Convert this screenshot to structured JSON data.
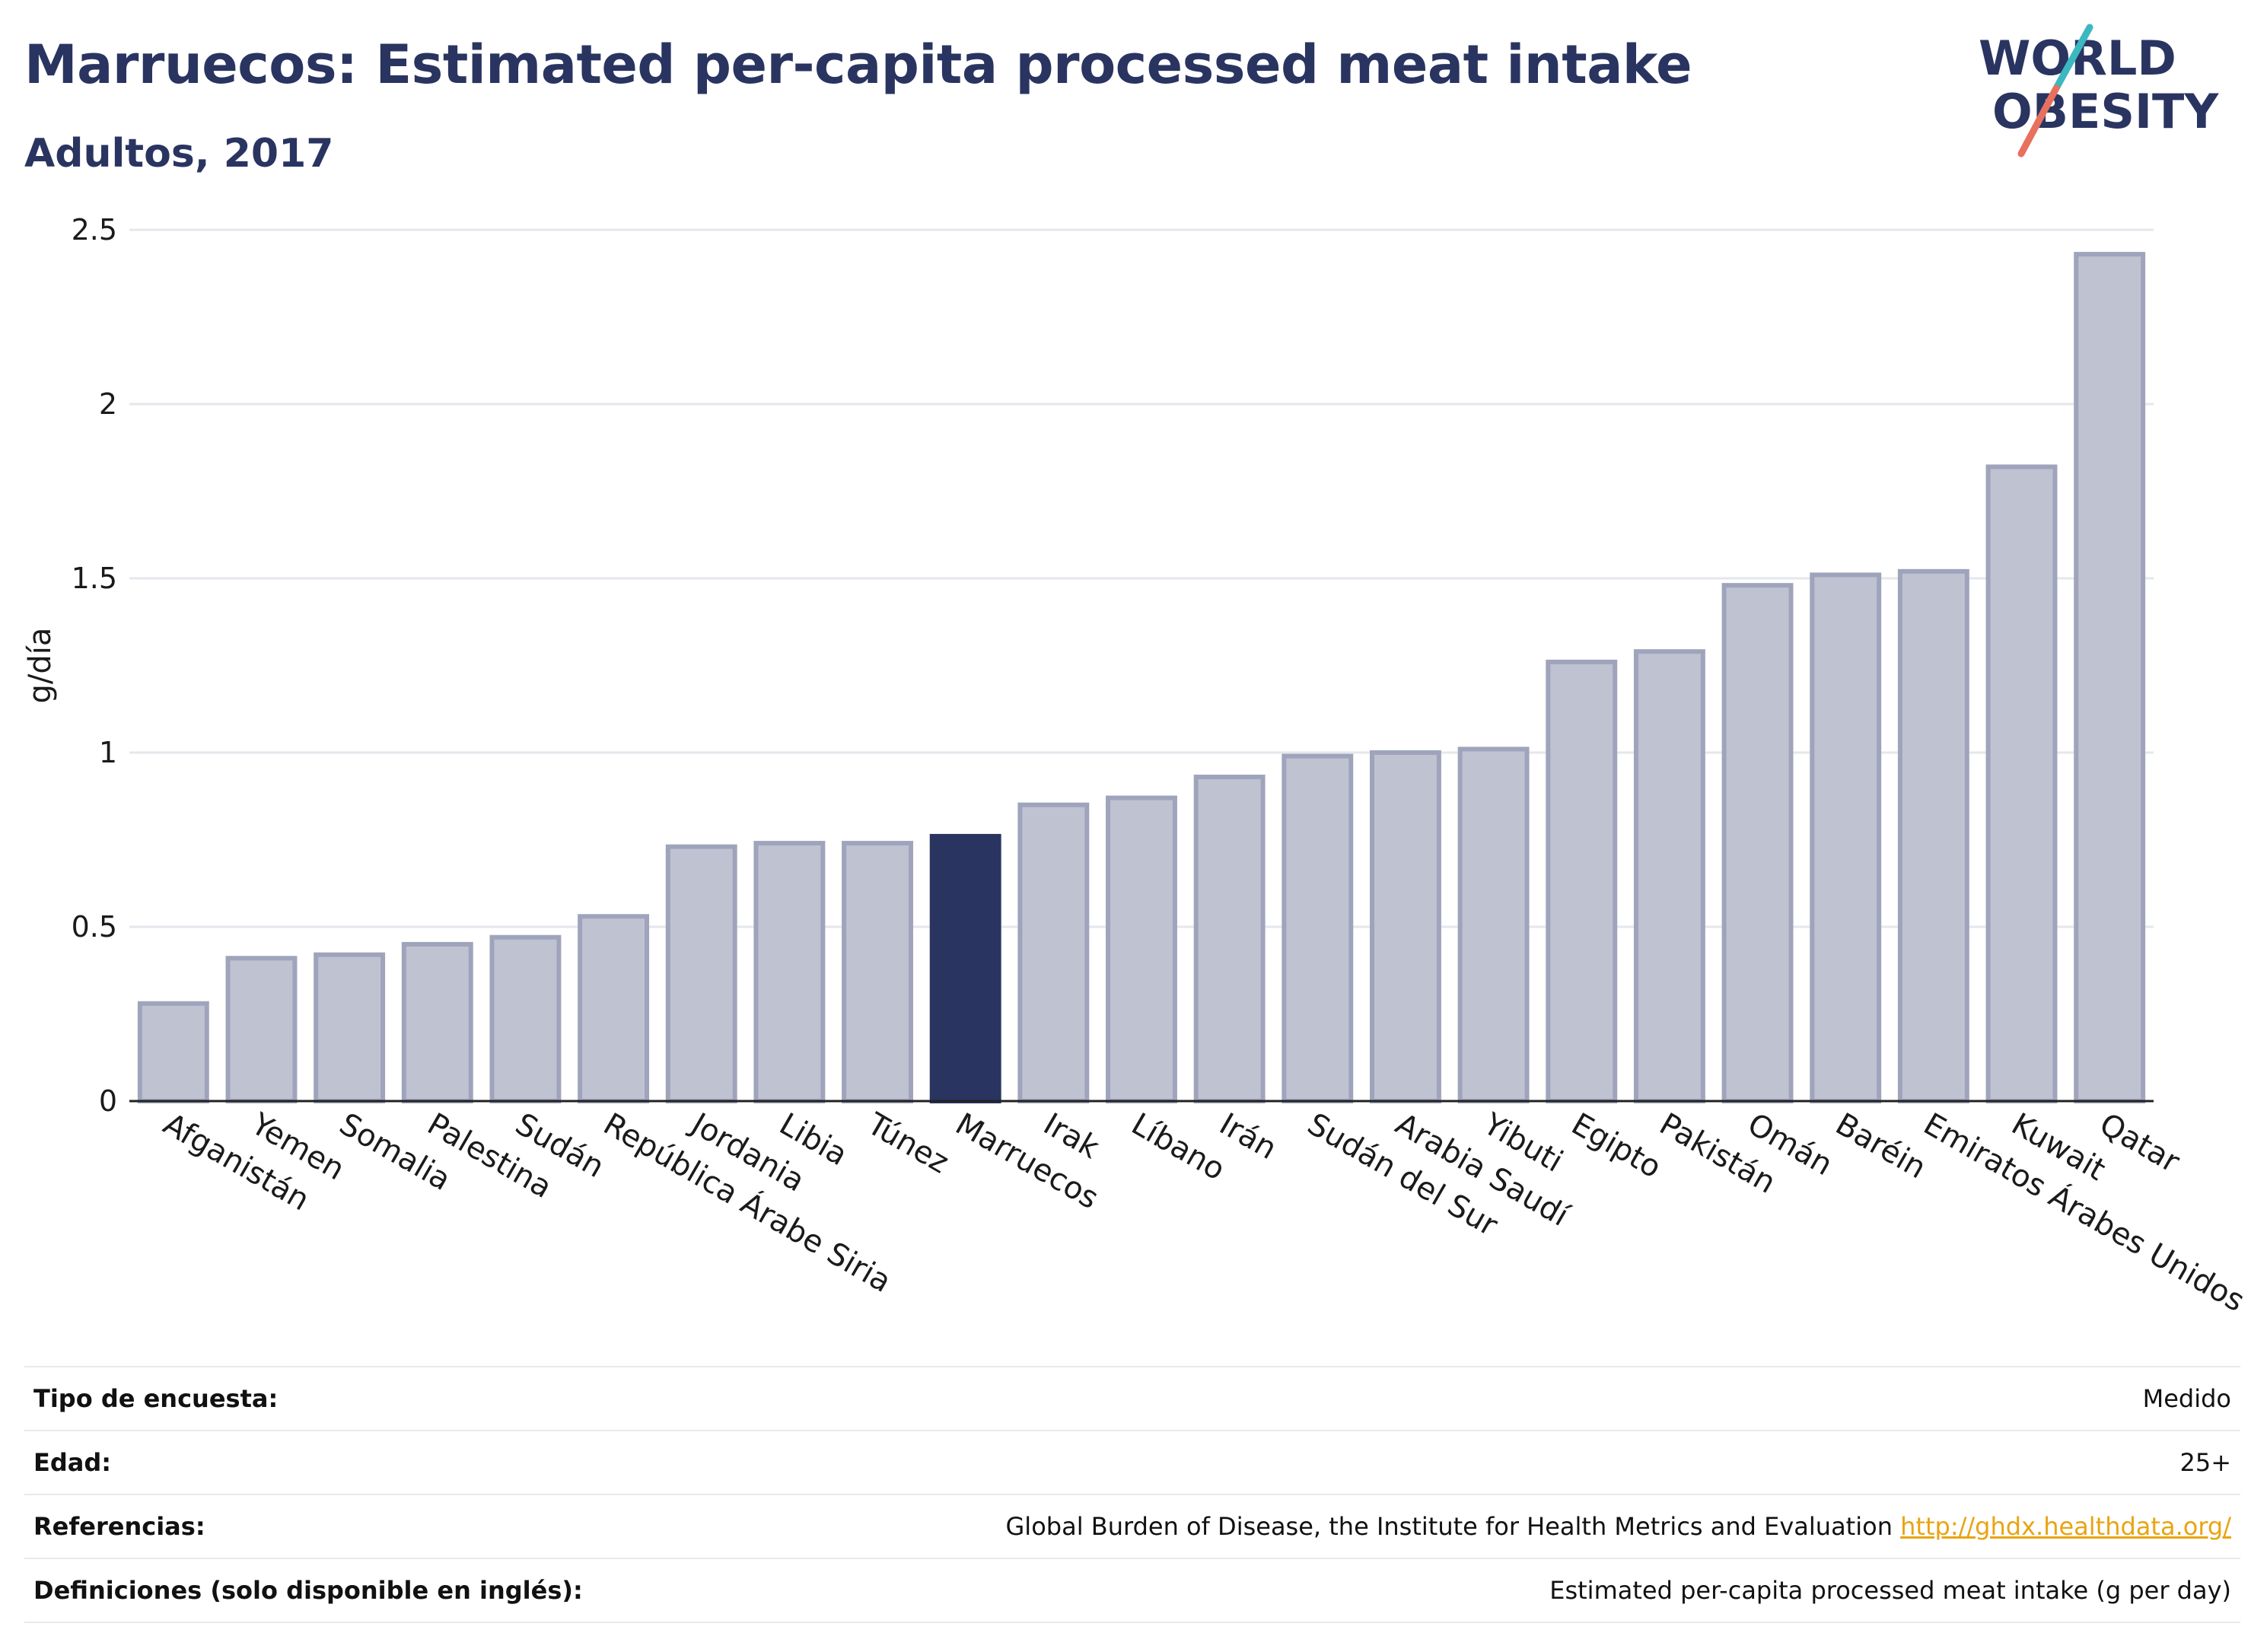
{
  "header": {
    "title": "Marruecos: Estimated per-capita processed meat intake",
    "subtitle": "Adultos, 2017",
    "logo_line1": "WORLD",
    "logo_line2": "OBESITY"
  },
  "colors": {
    "title": "#2a3460",
    "bar_default": "#bfc2d1",
    "bar_default_stroke": "#9fa4bc",
    "bar_highlight": "#2a3460",
    "grid": "#e6e7ec",
    "link": "#e8a412",
    "logo_teal": "#3bb8c0",
    "logo_coral": "#e8705e"
  },
  "chart_data": {
    "type": "bar",
    "title": "",
    "xlabel": "",
    "ylabel": "g/día",
    "ylim": [
      0,
      2.5
    ],
    "yticks": [
      0,
      0.5,
      1,
      1.5,
      2,
      2.5
    ],
    "ytick_labels": [
      "0",
      "0.5",
      "1",
      "1.5",
      "2",
      "2.5"
    ],
    "grid": true,
    "highlight": "Marruecos",
    "categories": [
      "Afganistán",
      "Yemen",
      "Somalia",
      "Palestina",
      "Sudán",
      "República Árabe Siria",
      "Jordania",
      "Libia",
      "Túnez",
      "Marruecos",
      "Irak",
      "Líbano",
      "Irán",
      "Sudán del Sur",
      "Arabia Saudí",
      "Yibuti",
      "Egipto",
      "Pakistán",
      "Omán",
      "Baréin",
      "Emiratos Árabes Unidos",
      "Kuwait",
      "Qatar"
    ],
    "values": [
      0.28,
      0.41,
      0.42,
      0.45,
      0.47,
      0.53,
      0.73,
      0.74,
      0.74,
      0.76,
      0.85,
      0.87,
      0.93,
      0.99,
      1.0,
      1.01,
      1.26,
      1.29,
      1.48,
      1.51,
      1.52,
      1.82,
      2.43
    ]
  },
  "info_table": [
    {
      "label": "Tipo de encuesta:",
      "value": "Medido"
    },
    {
      "label": "Edad:",
      "value": "25+"
    },
    {
      "label": "Referencias:",
      "value": "Global Burden of Disease, the Institute for Health Metrics and Evaluation",
      "link": "http://ghdx.healthdata.org/"
    },
    {
      "label": "Definiciones (solo disponible en inglés):",
      "value": "Estimated per-capita processed meat intake (g per day)"
    }
  ]
}
